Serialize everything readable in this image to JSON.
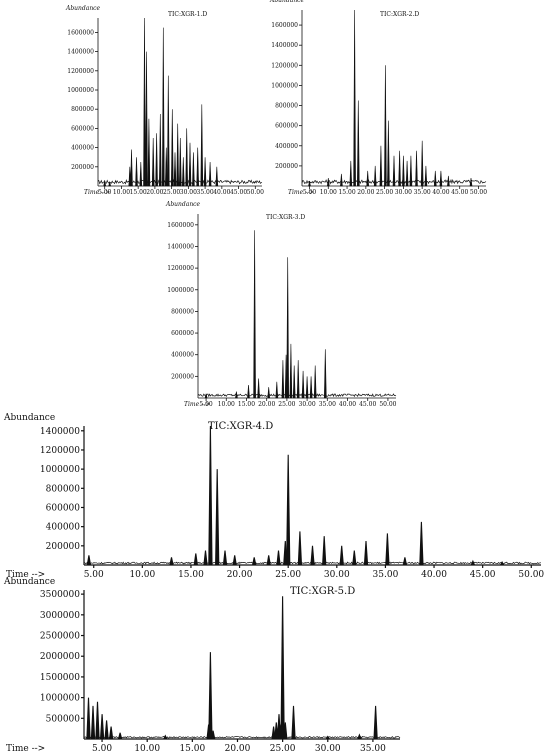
{
  "chart_data": [
    {
      "type": "line",
      "title": "TIC:XGR-1.D",
      "ylabel": "Abundance",
      "xlabel": "Time -->",
      "x_ticks": [
        "5.00",
        "10.00",
        "15.00",
        "20.00",
        "25.00",
        "30.00",
        "35.00",
        "40.00",
        "45.00",
        "50.00"
      ],
      "y_ticks": [
        "200000",
        "400000",
        "600000",
        "800000",
        "1000000",
        "1200000",
        "1400000",
        "1600000"
      ],
      "xlim": [
        3,
        52
      ],
      "ylim": [
        0,
        1750000
      ],
      "peaks": [
        [
          5.0,
          60000
        ],
        [
          6.5,
          40000
        ],
        [
          12.5,
          200000
        ],
        [
          13.0,
          380000
        ],
        [
          14.5,
          300000
        ],
        [
          15.8,
          250000
        ],
        [
          16.9,
          1750000
        ],
        [
          17.5,
          1400000
        ],
        [
          18.2,
          700000
        ],
        [
          19.5,
          500000
        ],
        [
          20.5,
          550000
        ],
        [
          21.6,
          750000
        ],
        [
          22.5,
          1650000
        ],
        [
          23.4,
          400000
        ],
        [
          24.0,
          1150000
        ],
        [
          25.2,
          800000
        ],
        [
          26.0,
          350000
        ],
        [
          26.8,
          650000
        ],
        [
          27.6,
          500000
        ],
        [
          28.5,
          300000
        ],
        [
          29.5,
          600000
        ],
        [
          30.5,
          450000
        ],
        [
          31.5,
          350000
        ],
        [
          32.8,
          400000
        ],
        [
          34.0,
          850000
        ],
        [
          35.0,
          300000
        ],
        [
          36.5,
          250000
        ],
        [
          38.5,
          200000
        ]
      ],
      "baseline": 40000
    },
    {
      "type": "line",
      "title": "TIC:XGR-2.D",
      "ylabel": "Abundance",
      "xlabel": "Time -->",
      "x_ticks": [
        "5.00",
        "10.00",
        "15.00",
        "20.00",
        "25.00",
        "30.00",
        "35.00",
        "40.00",
        "45.00",
        "50.00"
      ],
      "y_ticks": [
        "200000",
        "400000",
        "600000",
        "800000",
        "1000000",
        "1200000",
        "1400000",
        "1600000"
      ],
      "xlim": [
        3,
        52
      ],
      "ylim": [
        0,
        1750000
      ],
      "peaks": [
        [
          5.0,
          50000
        ],
        [
          10.0,
          80000
        ],
        [
          13.5,
          120000
        ],
        [
          16.0,
          250000
        ],
        [
          17.0,
          1750000
        ],
        [
          18.0,
          850000
        ],
        [
          20.5,
          150000
        ],
        [
          22.5,
          200000
        ],
        [
          24.0,
          400000
        ],
        [
          25.2,
          1200000
        ],
        [
          26.0,
          650000
        ],
        [
          27.5,
          300000
        ],
        [
          29.0,
          350000
        ],
        [
          30.0,
          300000
        ],
        [
          31.0,
          250000
        ],
        [
          32.0,
          300000
        ],
        [
          33.5,
          350000
        ],
        [
          35.0,
          450000
        ],
        [
          36.0,
          200000
        ],
        [
          38.5,
          150000
        ],
        [
          40.0,
          150000
        ],
        [
          42.0,
          100000
        ],
        [
          48.0,
          80000
        ]
      ],
      "baseline": 40000
    },
    {
      "type": "line",
      "title": "TIC:XGR-3.D",
      "ylabel": "Abundance",
      "xlabel": "Time -->",
      "x_ticks": [
        "5.00",
        "10.00",
        "15.00",
        "20.00",
        "25.00",
        "30.00",
        "35.00",
        "40.00",
        "45.00",
        "50.00"
      ],
      "y_ticks": [
        "200000",
        "400000",
        "600000",
        "800000",
        "1000000",
        "1200000",
        "1400000",
        "1600000"
      ],
      "xlim": [
        3,
        52
      ],
      "ylim": [
        0,
        1700000
      ],
      "peaks": [
        [
          5.0,
          40000
        ],
        [
          12.5,
          60000
        ],
        [
          15.5,
          120000
        ],
        [
          17.0,
          1550000
        ],
        [
          18.0,
          180000
        ],
        [
          20.5,
          100000
        ],
        [
          22.5,
          150000
        ],
        [
          24.0,
          350000
        ],
        [
          24.8,
          400000
        ],
        [
          25.2,
          1300000
        ],
        [
          26.0,
          500000
        ],
        [
          26.8,
          300000
        ],
        [
          27.8,
          350000
        ],
        [
          29.0,
          250000
        ],
        [
          30.0,
          200000
        ],
        [
          31.0,
          200000
        ],
        [
          32.0,
          300000
        ],
        [
          34.5,
          450000
        ]
      ],
      "baseline": 25000
    },
    {
      "type": "line",
      "title": "TIC:XGR-4.D",
      "ylabel": "Abundance",
      "xlabel": "Time -->",
      "x_ticks": [
        "5.00",
        "10.00",
        "15.00",
        "20.00",
        "25.00",
        "30.00",
        "35.00",
        "40.00",
        "45.00",
        "50.00"
      ],
      "y_ticks": [
        "200000",
        "400000",
        "600000",
        "800000",
        "1000000",
        "1200000",
        "1400000"
      ],
      "xlim": [
        4,
        51
      ],
      "ylim": [
        0,
        1450000
      ],
      "peaks": [
        [
          4.5,
          100000
        ],
        [
          13.0,
          80000
        ],
        [
          15.5,
          120000
        ],
        [
          16.5,
          150000
        ],
        [
          17.0,
          1450000
        ],
        [
          17.7,
          1000000
        ],
        [
          18.5,
          150000
        ],
        [
          19.5,
          100000
        ],
        [
          21.5,
          80000
        ],
        [
          23.0,
          100000
        ],
        [
          24.0,
          150000
        ],
        [
          24.7,
          250000
        ],
        [
          25.0,
          1150000
        ],
        [
          26.2,
          350000
        ],
        [
          27.5,
          200000
        ],
        [
          28.7,
          300000
        ],
        [
          30.5,
          200000
        ],
        [
          31.8,
          150000
        ],
        [
          33.0,
          250000
        ],
        [
          35.2,
          330000
        ],
        [
          37.0,
          80000
        ],
        [
          38.7,
          450000
        ],
        [
          44.0,
          40000
        ],
        [
          47.0,
          30000
        ]
      ],
      "baseline": 20000
    },
    {
      "type": "line",
      "title": "TIC:XGR-5.D",
      "ylabel": "Abundance",
      "xlabel": "Time -->",
      "x_ticks": [
        "5.00",
        "10.00",
        "15.00",
        "20.00",
        "25.00",
        "30.00",
        "35.00"
      ],
      "y_ticks": [
        "500000",
        "1000000",
        "1500000",
        "2000000",
        "2500000",
        "3000000",
        "3500000"
      ],
      "xlim": [
        3,
        38
      ],
      "ylim": [
        0,
        3600000
      ],
      "peaks": [
        [
          3.5,
          1000000
        ],
        [
          4.0,
          800000
        ],
        [
          4.5,
          900000
        ],
        [
          5.0,
          600000
        ],
        [
          5.5,
          450000
        ],
        [
          6.0,
          300000
        ],
        [
          7.0,
          150000
        ],
        [
          12.0,
          80000
        ],
        [
          16.8,
          350000
        ],
        [
          17.0,
          2100000
        ],
        [
          17.3,
          200000
        ],
        [
          24.0,
          300000
        ],
        [
          24.3,
          400000
        ],
        [
          24.6,
          600000
        ],
        [
          24.8,
          350000
        ],
        [
          25.0,
          3450000
        ],
        [
          25.3,
          400000
        ],
        [
          26.2,
          800000
        ],
        [
          30.0,
          60000
        ],
        [
          33.5,
          100000
        ],
        [
          35.3,
          800000
        ]
      ],
      "baseline": 40000
    }
  ]
}
